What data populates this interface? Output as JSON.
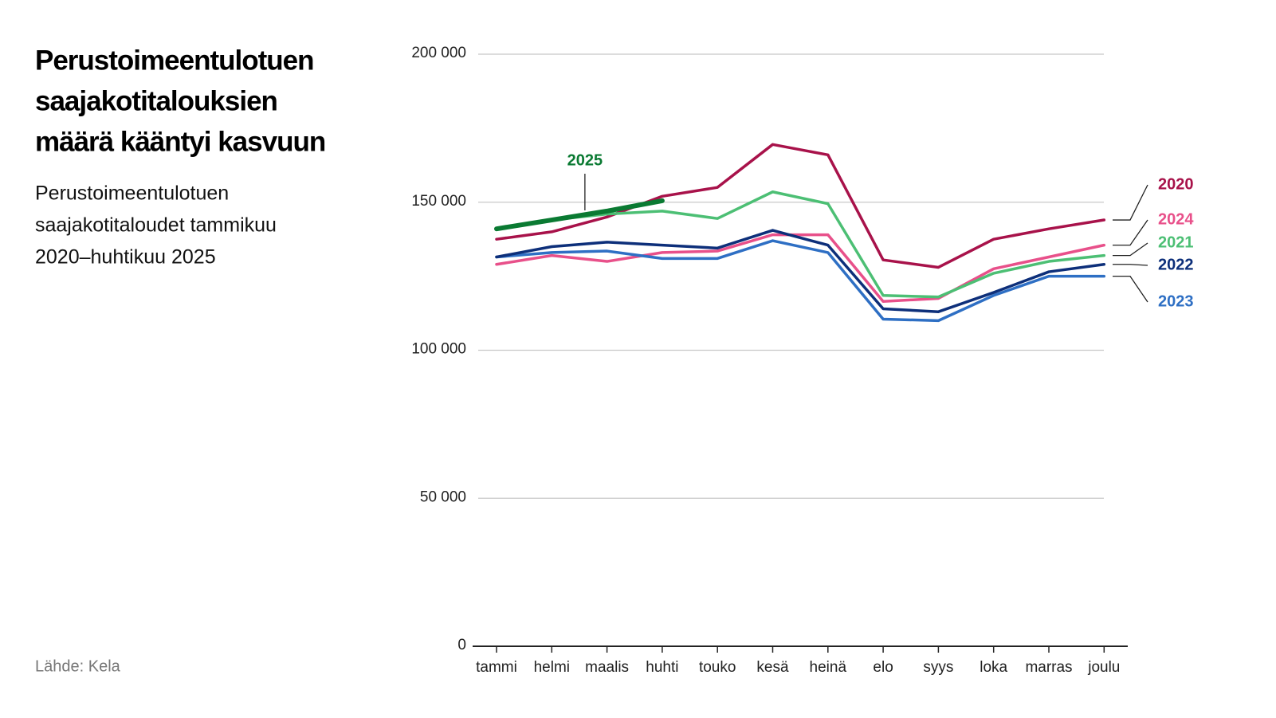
{
  "chart_data": {
    "type": "line",
    "title_lines": [
      "Perustoimeentulotuen",
      "saajakotitalouksien",
      "määrä kääntyi kasvuun"
    ],
    "subtitle_lines": [
      "Perustoimeentulotuen",
      "saajakotitaloudet tammikuu",
      "2020–huhtikuu 2025"
    ],
    "source": "Lähde: Kela",
    "categories": [
      "tammi",
      "helmi",
      "maalis",
      "huhti",
      "touko",
      "kesä",
      "heinä",
      "elo",
      "syys",
      "loka",
      "marras",
      "joulu"
    ],
    "series": [
      {
        "name": "2020",
        "color": "#a8124a",
        "values": [
          137500,
          140000,
          145000,
          152000,
          155000,
          169500,
          166000,
          130500,
          128000,
          137500,
          141000,
          144000
        ]
      },
      {
        "name": "2021",
        "color": "#4cbf74",
        "values": [
          141000,
          144000,
          146000,
          147000,
          144500,
          153500,
          149500,
          118500,
          118000,
          126000,
          130000,
          132000
        ]
      },
      {
        "name": "2022",
        "color": "#0d2f7a",
        "values": [
          131500,
          135000,
          136500,
          135500,
          134500,
          140500,
          135500,
          114000,
          113000,
          119500,
          126500,
          129000
        ]
      },
      {
        "name": "2023",
        "color": "#2e6fc4",
        "values": [
          131500,
          133000,
          133500,
          131000,
          131000,
          137000,
          133000,
          110500,
          110000,
          118500,
          125000,
          125000
        ]
      },
      {
        "name": "2024",
        "color": "#e8508a",
        "values": [
          129000,
          132000,
          130000,
          133000,
          133500,
          139000,
          139000,
          116500,
          117500,
          127500,
          131500,
          135500
        ]
      },
      {
        "name": "2025",
        "color": "#0a7a32",
        "values": [
          141000,
          144000,
          147000,
          150500,
          null,
          null,
          null,
          null,
          null,
          null,
          null,
          null
        ]
      }
    ],
    "ylim": [
      0,
      200000
    ],
    "yticks": [
      0,
      {
        "value": 50000,
        "label": "50 000"
      },
      {
        "value": 100000,
        "label": "100 000"
      },
      {
        "value": 150000,
        "label": "150 000"
      },
      {
        "value": 200000,
        "label": "200 000"
      }
    ],
    "grid": true
  }
}
